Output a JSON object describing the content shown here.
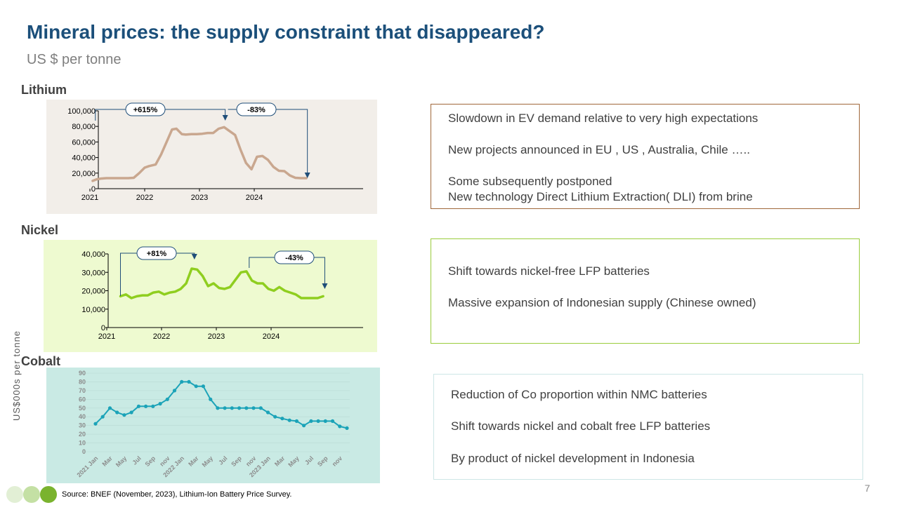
{
  "header": {
    "title": "Mineral prices: the supply constraint that disappeared?",
    "subtitle": "US $ per tonne"
  },
  "sections": {
    "lithium_label": "Lithium",
    "nickel_label": "Nickel",
    "cobalt_label": "Cobalt"
  },
  "notes": {
    "lithium": [
      "Slowdown in EV demand relative to very high expectations",
      "New projects announced in EU , US , Australia, Chile …..",
      "Some subsequently postponed",
      "New   technology Direct Lithium Extraction( DLI) from brine"
    ],
    "nickel": [
      "Shift towards nickel-free LFP batteries",
      "Massive expansion of Indonesian supply (Chinese owned)"
    ],
    "cobalt": [
      "Reduction of Co proportion within NMC batteries",
      " Shift towards nickel and cobalt  free LFP batteries",
      "By product of nickel development in Indonesia"
    ]
  },
  "footer": {
    "source": "Source: BNEF (November, 2023), Lithium-Ion Battery Price Survey.",
    "page_number": "7"
  },
  "colors": {
    "title": "#1b4f7a",
    "lithium_bg": "#f2eee9",
    "lithium_line": "#c9a78f",
    "lithium_box_border": "#a0673a",
    "nickel_bg": "#eefad0",
    "nickel_line": "#8fce1f",
    "nickel_box_border": "#9acc3c",
    "cobalt_bg": "#c9eae4",
    "cobalt_line": "#1ba3b8",
    "cobalt_box_border": "#cde6e6",
    "annotation": "#1f4e79"
  },
  "chart_data": [
    {
      "id": "lithium",
      "type": "line",
      "x_ticks": [
        "2021",
        "2022",
        "2023",
        "2024"
      ],
      "y_ticks": [
        "0",
        "20,000",
        "40,000",
        "60,000",
        "80,000",
        "100,000"
      ],
      "ylim": [
        0,
        100000
      ],
      "xlim": [
        2021.0,
        2025.0
      ],
      "x": [
        2021.05,
        2021.12,
        2021.2,
        2021.3,
        2021.4,
        2021.5,
        2021.6,
        2021.7,
        2021.8,
        2021.9,
        2022.0,
        2022.08,
        2022.2,
        2022.3,
        2022.4,
        2022.5,
        2022.58,
        2022.68,
        2022.75,
        2022.85,
        2022.95,
        2023.05,
        2023.15,
        2023.25,
        2023.35,
        2023.45,
        2023.55,
        2023.65,
        2023.75,
        2023.85,
        2023.95,
        2024.05,
        2024.15,
        2024.25,
        2024.35,
        2024.45,
        2024.55,
        2024.65,
        2024.75,
        2024.85,
        2024.95
      ],
      "y": [
        10000,
        12000,
        13000,
        13500,
        13500,
        13500,
        13500,
        13500,
        14000,
        20000,
        27000,
        29000,
        31000,
        44000,
        60000,
        76000,
        77000,
        70000,
        69500,
        70000,
        70000,
        70500,
        71500,
        71500,
        77000,
        79000,
        74000,
        69000,
        50000,
        33000,
        25000,
        41000,
        42000,
        37000,
        28000,
        23000,
        22500,
        17000,
        14000,
        13500,
        13500
      ],
      "annotations": [
        {
          "label": "+615%",
          "from_year": 2021.1,
          "to_year": 2023.47
        },
        {
          "label": "-83%",
          "from_year": 2023.52,
          "to_year": 2024.97
        }
      ]
    },
    {
      "id": "nickel",
      "type": "line",
      "x_ticks": [
        "2021",
        "2022",
        "2023",
        "2024"
      ],
      "y_ticks": [
        "0",
        "10,000",
        "20,000",
        "30,000",
        "40,000"
      ],
      "ylim": [
        0,
        40000
      ],
      "xlim": [
        2021.0,
        2025.0
      ],
      "x": [
        2021.25,
        2021.35,
        2021.45,
        2021.55,
        2021.65,
        2021.75,
        2021.85,
        2021.95,
        2022.05,
        2022.15,
        2022.25,
        2022.35,
        2022.45,
        2022.55,
        2022.65,
        2022.75,
        2022.85,
        2022.95,
        2023.05,
        2023.15,
        2023.25,
        2023.35,
        2023.45,
        2023.55,
        2023.65,
        2023.75,
        2023.85,
        2023.95,
        2024.05,
        2024.15,
        2024.25,
        2024.35,
        2024.45,
        2024.55,
        2024.65,
        2024.75,
        2024.85,
        2024.95
      ],
      "y": [
        17000,
        18000,
        16000,
        17000,
        17500,
        17500,
        19000,
        19500,
        18000,
        19000,
        19500,
        21000,
        24000,
        32000,
        31500,
        28000,
        22500,
        24000,
        21500,
        21000,
        22000,
        26000,
        30000,
        30500,
        25500,
        24000,
        24000,
        21000,
        20000,
        22000,
        20000,
        19000,
        18000,
        16000,
        16000,
        16000,
        16000,
        17000
      ],
      "annotations": [
        {
          "label": "+81%",
          "from_year": 2021.25,
          "to_year": 2022.6
        },
        {
          "label": "-43%",
          "from_year": 2023.6,
          "to_year": 2024.98
        }
      ]
    },
    {
      "id": "cobalt",
      "type": "line",
      "ylabel": "US$000s  per tonne",
      "y_ticks": [
        "0",
        "10",
        "20",
        "30",
        "40",
        "50",
        "60",
        "70",
        "80",
        "90"
      ],
      "ylim": [
        0,
        90
      ],
      "x_labels": [
        "2021 Jan",
        "Mar",
        "May",
        "Jul",
        "Sep",
        "nov",
        "2022 Jan",
        "Mar",
        "May",
        "Jul",
        "Sep",
        "nov",
        "2023 Jan",
        "Mar",
        "May",
        "Jul",
        "Sep",
        "nov"
      ],
      "values": [
        32,
        40,
        50,
        45,
        42,
        45,
        52,
        52,
        52,
        55,
        60,
        70,
        80,
        80,
        75,
        75,
        60,
        50,
        50,
        50,
        50,
        50,
        50,
        50,
        45,
        40,
        38,
        36,
        35,
        30,
        35,
        35,
        35,
        35,
        29,
        27
      ]
    }
  ]
}
